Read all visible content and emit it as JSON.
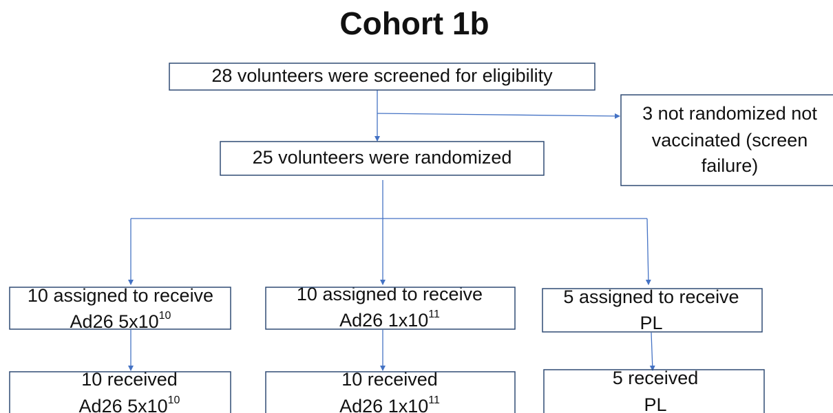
{
  "title": "Cohort 1b",
  "nodes": [
    {
      "lines": [
        "28 volunteers were screened for eligibility"
      ]
    },
    {
      "lines": [
        "3 not randomized not",
        "vaccinated (screen",
        "failure)"
      ]
    },
    {
      "lines": [
        "25 volunteers were randomized"
      ]
    },
    {
      "lines": [
        "10 assigned to receive"
      ],
      "dose": {
        "base": "Ad26 5x10",
        "exp": "10"
      }
    },
    {
      "lines": [
        "10 assigned to receive"
      ],
      "dose": {
        "base": "Ad26 1x10",
        "exp": "11"
      }
    },
    {
      "lines": [
        "5 assigned to receive",
        "PL"
      ]
    },
    {
      "lines": [
        "10 received"
      ],
      "dose": {
        "base": "Ad26 5x10",
        "exp": "10"
      }
    },
    {
      "lines": [
        "10 received"
      ],
      "dose": {
        "base": "Ad26 1x10",
        "exp": "11"
      }
    },
    {
      "lines": [
        "5 received",
        "PL"
      ]
    }
  ]
}
